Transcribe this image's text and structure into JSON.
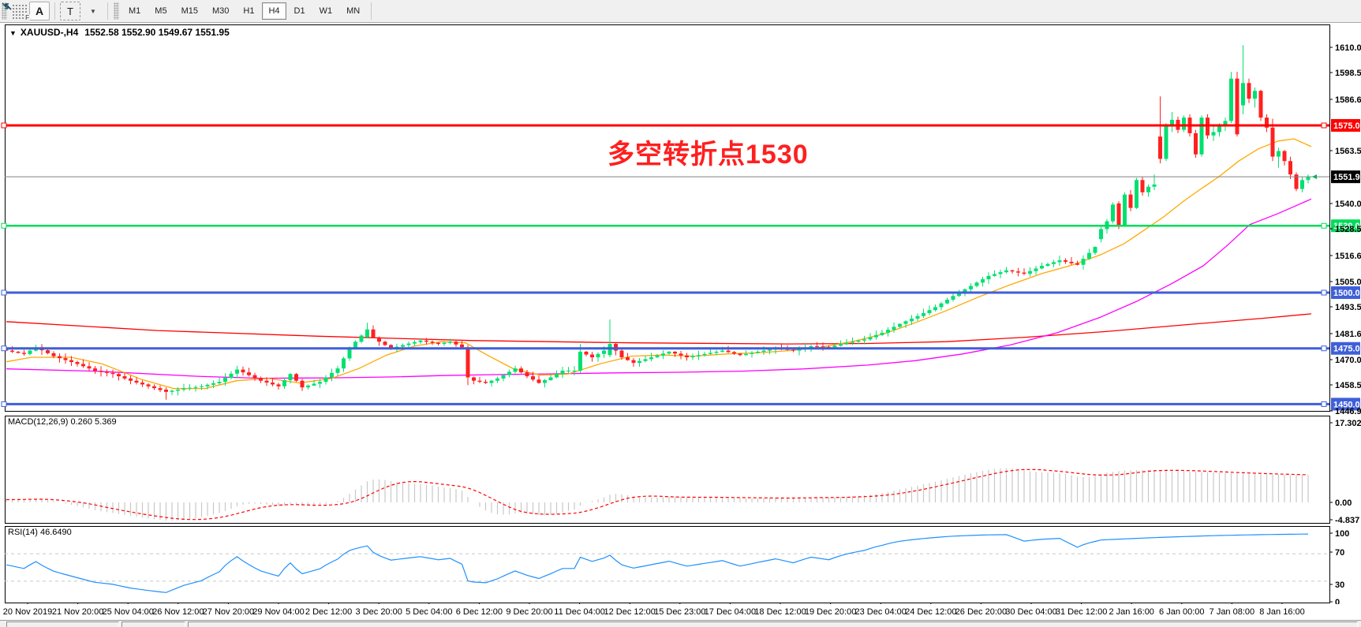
{
  "toolbar": {
    "grid_button_label": "F",
    "annotate_button": "A",
    "text_button": "T",
    "timeframes": [
      "M1",
      "M5",
      "M15",
      "M30",
      "H1",
      "H4",
      "D1",
      "W1",
      "MN"
    ],
    "active_timeframe": "H4"
  },
  "header": {
    "symbol_period": "XAUUSD-,H4",
    "ohlc": "1552.58 1552.90 1549.67 1551.95"
  },
  "annotation": {
    "text": "多空转折点1530",
    "color": "#ff1f1f"
  },
  "macd": {
    "label": "MACD(12,26,9) 0.260 5.369",
    "ticks": [
      [
        "17.302",
        536
      ],
      [
        "0.00",
        637
      ],
      [
        "-4.837",
        659
      ]
    ]
  },
  "rsi": {
    "label": "RSI(14) 46.6490",
    "ticks": [
      [
        "100",
        676
      ],
      [
        "70",
        700
      ],
      [
        "30",
        741
      ],
      [
        "0",
        763
      ]
    ],
    "levels": [
      70,
      30
    ]
  },
  "x_labels": [
    "20 Nov 2019",
    "21 Nov 20:00",
    "25 Nov 04:00",
    "26 Nov 12:00",
    "27 Nov 20:00",
    "29 Nov 04:00",
    "2 Dec 12:00",
    "3 Dec 20:00",
    "5 Dec 04:00",
    "6 Dec 12:00",
    "9 Dec 20:00",
    "11 Dec 04:00",
    "12 Dec 12:00",
    "15 Dec 23:00",
    "17 Dec 04:00",
    "18 Dec 12:00",
    "19 Dec 20:00",
    "23 Dec 04:00",
    "24 Dec 12:00",
    "26 Dec 20:00",
    "30 Dec 04:00",
    "31 Dec 12:00",
    "2 Jan 16:00",
    "6 Jan 00:00",
    "7 Jan 08:00",
    "8 Jan 16:00"
  ],
  "y_ticks": [
    [
      "1610.05",
      60
    ],
    [
      "1598.50",
      92
    ],
    [
      "1586.60",
      126
    ],
    [
      "1563.50",
      191
    ],
    [
      "1540.05",
      258
    ],
    [
      "1528.50",
      290
    ],
    [
      "1516.60",
      324
    ],
    [
      "1505.05",
      357
    ],
    [
      "1493.50",
      389
    ],
    [
      "1481.60",
      423
    ],
    [
      "1470.05",
      456
    ],
    [
      "1458.50",
      488
    ],
    [
      "1446.95",
      521
    ]
  ],
  "colors": {
    "bull": "#00e070",
    "bear": "#ff2020",
    "wick_bull": "#00c863",
    "wick_bear": "#ff2020",
    "hline_red": "#ff0000",
    "hline_green": "#00dc5a",
    "hline_blue": "#3f5fd8",
    "current_line": "#808080",
    "current_tag_bg": "#000000",
    "ma_fast": "#ffa800",
    "ma_mid": "#ff00ff",
    "ma_slow": "#ff0000",
    "macd_hist": "#c8c8c8",
    "macd_signal": "#ff0000",
    "rsi_line": "#1e90ff",
    "panel_border": "#000000",
    "scale_text": "#000000"
  },
  "chart_data": {
    "type": "candlestick",
    "symbol": "XAUUSD",
    "timeframe": "H4",
    "bars": 221,
    "current_price": 1551.95,
    "price_lines": [
      {
        "price": 1575.0,
        "label": "1575.00",
        "color_key": "hline_red",
        "width": 3
      },
      {
        "price": 1530.0,
        "label": "1530.00",
        "color_key": "hline_green",
        "width": 2.5
      },
      {
        "price": 1500.0,
        "label": "1500.00",
        "color_key": "hline_blue",
        "width": 3
      },
      {
        "price": 1475.0,
        "label": "1475.00",
        "color_key": "hline_blue",
        "width": 3
      },
      {
        "price": 1450.0,
        "label": "1450.00",
        "color_key": "hline_blue",
        "width": 3
      }
    ],
    "close_anchors": [
      [
        0,
        1474
      ],
      [
        3,
        1472.5
      ],
      [
        5,
        1475.5
      ],
      [
        8,
        1471.5
      ],
      [
        12,
        1468
      ],
      [
        15,
        1465
      ],
      [
        18,
        1463.5
      ],
      [
        21,
        1460.5
      ],
      [
        24,
        1458
      ],
      [
        27,
        1455.5
      ],
      [
        30,
        1457
      ],
      [
        33,
        1458
      ],
      [
        36,
        1460
      ],
      [
        39,
        1465.5
      ],
      [
        41,
        1463
      ],
      [
        43,
        1460.5
      ],
      [
        46,
        1458
      ],
      [
        48,
        1463.5
      ],
      [
        50,
        1457.5
      ],
      [
        53,
        1460
      ],
      [
        56,
        1466
      ],
      [
        58,
        1475
      ],
      [
        59,
        1478
      ],
      [
        61,
        1483.5
      ],
      [
        62,
        1480
      ],
      [
        63,
        1478
      ],
      [
        65,
        1475
      ],
      [
        67,
        1476.5
      ],
      [
        70,
        1478.5
      ],
      [
        73,
        1477
      ],
      [
        75,
        1478
      ],
      [
        77,
        1475.5
      ],
      [
        78,
        1462
      ],
      [
        79,
        1460.5
      ],
      [
        81,
        1459.5
      ],
      [
        83,
        1461.5
      ],
      [
        86,
        1466
      ],
      [
        88,
        1462.5
      ],
      [
        90,
        1459.5
      ],
      [
        92,
        1462
      ],
      [
        94,
        1465
      ],
      [
        96,
        1465
      ],
      [
        97,
        1473.5
      ],
      [
        99,
        1471
      ],
      [
        101,
        1474
      ],
      [
        102,
        1477
      ],
      [
        104,
        1471
      ],
      [
        106,
        1468.5
      ],
      [
        109,
        1471
      ],
      [
        112,
        1473.5
      ],
      [
        115,
        1471
      ],
      [
        118,
        1472.5
      ],
      [
        121,
        1474
      ],
      [
        124,
        1472
      ],
      [
        127,
        1473.5
      ],
      [
        130,
        1475
      ],
      [
        133,
        1474
      ],
      [
        136,
        1476
      ],
      [
        139,
        1475.5
      ],
      [
        142,
        1477.5
      ],
      [
        145,
        1479
      ],
      [
        148,
        1482
      ],
      [
        151,
        1486
      ],
      [
        154,
        1489.5
      ],
      [
        157,
        1493.5
      ],
      [
        160,
        1498.5
      ],
      [
        163,
        1503
      ],
      [
        166,
        1507.5
      ],
      [
        169,
        1510
      ],
      [
        172,
        1508.5
      ],
      [
        175,
        1512
      ],
      [
        178,
        1514.5
      ],
      [
        181,
        1512.5
      ],
      [
        184,
        1520.5
      ],
      [
        185,
        1524
      ],
      [
        220,
        1551.95
      ]
    ],
    "candle_overrides": {
      "27": [
        1456.5,
        1457.5,
        1452,
        1455.5
      ],
      "61": [
        1480,
        1486.5,
        1479.5,
        1483.5
      ],
      "78": [
        1475.5,
        1476.5,
        1458.5,
        1462
      ],
      "97": [
        1465,
        1477,
        1464,
        1473.5
      ],
      "102": [
        1472,
        1488,
        1471,
        1477
      ],
      "185": [
        1524,
        1529.5,
        1522.5,
        1528.5
      ],
      "186": [
        1528.5,
        1533,
        1526.5,
        1532
      ],
      "187": [
        1532,
        1540.5,
        1531,
        1539.5
      ],
      "188": [
        1540,
        1541,
        1528.5,
        1530
      ],
      "189": [
        1530,
        1545,
        1529.5,
        1544
      ],
      "190": [
        1544,
        1546,
        1536.5,
        1538
      ],
      "191": [
        1538,
        1551.5,
        1537.5,
        1550.5
      ],
      "192": [
        1550.5,
        1552,
        1543.5,
        1545
      ],
      "193": [
        1545,
        1548.5,
        1543,
        1547.5
      ],
      "194": [
        1547.5,
        1553,
        1546,
        1548.5
      ],
      "195": [
        1570,
        1588,
        1558,
        1560
      ],
      "196": [
        1560,
        1576,
        1559,
        1575
      ],
      "197": [
        1575,
        1581,
        1572,
        1577.5
      ],
      "198": [
        1577.5,
        1579,
        1571.5,
        1573
      ],
      "199": [
        1573,
        1579.5,
        1572,
        1578.5
      ],
      "200": [
        1578.5,
        1580,
        1570,
        1571.5
      ],
      "201": [
        1571.5,
        1573,
        1560.5,
        1562
      ],
      "202": [
        1562,
        1579.5,
        1561,
        1578.5
      ],
      "203": [
        1578.5,
        1580,
        1569,
        1570.5
      ],
      "204": [
        1570.5,
        1574.5,
        1568,
        1572
      ],
      "205": [
        1572,
        1576,
        1570,
        1574.5
      ],
      "206": [
        1574.5,
        1578.5,
        1572.5,
        1577
      ],
      "207": [
        1577,
        1599,
        1576,
        1596
      ],
      "208": [
        1596,
        1599,
        1570,
        1571
      ],
      "209": [
        1584,
        1611,
        1580,
        1594
      ],
      "210": [
        1594,
        1596,
        1585,
        1587
      ],
      "211": [
        1587,
        1592,
        1583,
        1590.5
      ],
      "212": [
        1590.5,
        1591,
        1577,
        1578.5
      ],
      "213": [
        1578.5,
        1580,
        1572,
        1574
      ],
      "214": [
        1574,
        1578,
        1559,
        1561
      ],
      "215": [
        1561,
        1565,
        1556,
        1563.5
      ],
      "216": [
        1563.5,
        1564,
        1557,
        1559
      ],
      "217": [
        1559,
        1561,
        1551,
        1553
      ],
      "218": [
        1553,
        1554,
        1545.5,
        1546.5
      ],
      "219": [
        1546.5,
        1552,
        1545,
        1550.5
      ],
      "220": [
        1550.5,
        1553,
        1549,
        1551.95
      ]
    },
    "ma_fast_anchors": [
      [
        8,
        1469
      ],
      [
        40,
        1471
      ],
      [
        90,
        1471
      ],
      [
        130,
        1468
      ],
      [
        180,
        1461
      ],
      [
        220,
        1457
      ],
      [
        260,
        1457
      ],
      [
        300,
        1460.5
      ],
      [
        340,
        1461.5
      ],
      [
        380,
        1459.5
      ],
      [
        420,
        1461.5
      ],
      [
        455,
        1466
      ],
      [
        490,
        1472
      ],
      [
        525,
        1476
      ],
      [
        560,
        1478
      ],
      [
        590,
        1477.5
      ],
      [
        620,
        1471.5
      ],
      [
        650,
        1466
      ],
      [
        685,
        1463
      ],
      [
        720,
        1463.5
      ],
      [
        760,
        1468
      ],
      [
        800,
        1471.5
      ],
      [
        840,
        1472
      ],
      [
        880,
        1471.5
      ],
      [
        920,
        1472.5
      ],
      [
        960,
        1473
      ],
      [
        1000,
        1474
      ],
      [
        1040,
        1475.5
      ],
      [
        1080,
        1478
      ],
      [
        1120,
        1481.5
      ],
      [
        1160,
        1486.5
      ],
      [
        1200,
        1492
      ],
      [
        1240,
        1498
      ],
      [
        1280,
        1503.5
      ],
      [
        1320,
        1508.5
      ],
      [
        1360,
        1512.5
      ],
      [
        1395,
        1517
      ],
      [
        1425,
        1522
      ],
      [
        1450,
        1528
      ],
      [
        1475,
        1534
      ],
      [
        1500,
        1541
      ],
      [
        1520,
        1546
      ],
      [
        1545,
        1552
      ],
      [
        1570,
        1559
      ],
      [
        1595,
        1564.5
      ],
      [
        1620,
        1568
      ],
      [
        1640,
        1569
      ],
      [
        1662,
        1565.5
      ]
    ],
    "ma_mid_anchors": [
      [
        8,
        1465.8
      ],
      [
        120,
        1464.8
      ],
      [
        250,
        1462.5
      ],
      [
        330,
        1461.6
      ],
      [
        420,
        1461.8
      ],
      [
        500,
        1462.2
      ],
      [
        560,
        1462.8
      ],
      [
        620,
        1463.2
      ],
      [
        700,
        1463.6
      ],
      [
        780,
        1464
      ],
      [
        860,
        1464.3
      ],
      [
        940,
        1464.8
      ],
      [
        1020,
        1465.8
      ],
      [
        1100,
        1467.5
      ],
      [
        1160,
        1469.5
      ],
      [
        1220,
        1472.5
      ],
      [
        1280,
        1476.5
      ],
      [
        1340,
        1482
      ],
      [
        1395,
        1489
      ],
      [
        1440,
        1496
      ],
      [
        1485,
        1504
      ],
      [
        1525,
        1512
      ],
      [
        1555,
        1521
      ],
      [
        1584,
        1530.5
      ],
      [
        1620,
        1535.5
      ],
      [
        1662,
        1542
      ]
    ],
    "ma_slow_anchors": [
      [
        8,
        1487
      ],
      [
        200,
        1483
      ],
      [
        400,
        1480.5
      ],
      [
        600,
        1478.5
      ],
      [
        800,
        1477.5
      ],
      [
        1000,
        1477
      ],
      [
        1100,
        1477.2
      ],
      [
        1200,
        1478
      ],
      [
        1300,
        1480
      ],
      [
        1400,
        1482.5
      ],
      [
        1500,
        1485.5
      ],
      [
        1600,
        1488.5
      ],
      [
        1662,
        1490.5
      ]
    ],
    "macd_params": {
      "fast": 12,
      "slow": 26,
      "signal": 9,
      "scale_max": 17.302,
      "scale_min": -4.837
    },
    "rsi_params": {
      "period": 14,
      "upper": 70,
      "lower": 30,
      "current": 46.649
    }
  }
}
